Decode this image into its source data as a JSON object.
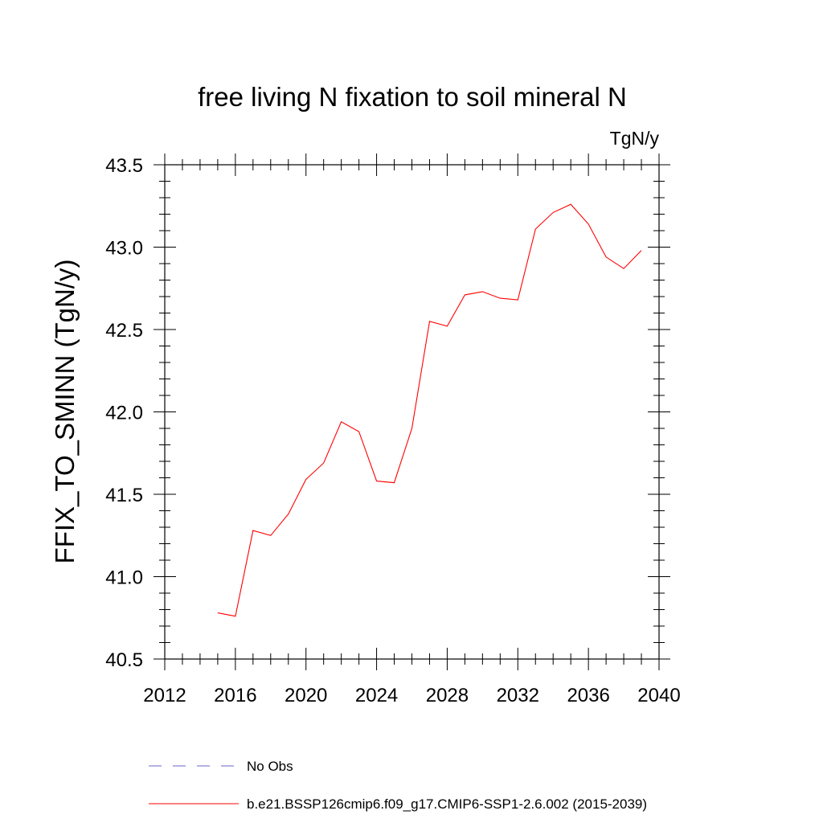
{
  "chart_data": {
    "type": "line",
    "title": "free living N fixation to soil mineral N",
    "units_label": "TgN/y",
    "ylabel": "FFIX_TO_SMINN  (TgN/y)",
    "xlabel": "",
    "xlim": [
      2012,
      2040
    ],
    "ylim": [
      40.5,
      43.5
    ],
    "x_ticks": [
      2012,
      2016,
      2020,
      2024,
      2028,
      2032,
      2036,
      2040
    ],
    "x_tick_labels": [
      "2012",
      "2016",
      "2020",
      "2024",
      "2028",
      "2032",
      "2036",
      "2040"
    ],
    "y_ticks": [
      40.5,
      41.0,
      41.5,
      42.0,
      42.5,
      43.0,
      43.5
    ],
    "y_tick_labels": [
      "40.5",
      "41.0",
      "41.5",
      "42.0",
      "42.5",
      "43.0",
      "43.5"
    ],
    "grid": false,
    "series": [
      {
        "name": "b.e21.BSSP126cmip6.f09_g17.CMIP6-SSP1-2.6.002 (2015-2039)",
        "color": "#ff0000",
        "x": [
          2015,
          2016,
          2017,
          2018,
          2019,
          2020,
          2021,
          2022,
          2023,
          2024,
          2025,
          2026,
          2027,
          2028,
          2029,
          2030,
          2031,
          2032,
          2033,
          2034,
          2035,
          2036,
          2037,
          2038,
          2039
        ],
        "values": [
          40.78,
          40.76,
          41.28,
          41.25,
          41.38,
          41.59,
          41.69,
          41.94,
          41.88,
          41.58,
          41.57,
          41.9,
          42.55,
          42.52,
          42.71,
          42.73,
          42.69,
          42.68,
          43.11,
          43.21,
          43.26,
          43.14,
          42.94,
          42.87,
          42.98
        ]
      }
    ],
    "legend": [
      {
        "label": "No Obs",
        "color": "#6666cc",
        "style": "dashed"
      },
      {
        "label": "b.e21.BSSP126cmip6.f09_g17.CMIP6-SSP1-2.6.002 (2015-2039)",
        "color": "#ff0000",
        "style": "solid"
      }
    ],
    "legend_position": "bottom"
  }
}
